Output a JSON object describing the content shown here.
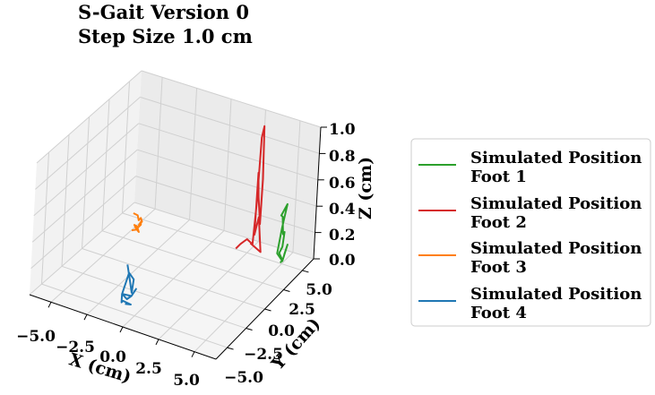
{
  "chart_data": {
    "type": "line",
    "projection": "3d",
    "title": [
      "S-Gait Version 0",
      "Step Size 1.0 cm"
    ],
    "xlabel": "X (cm)",
    "ylabel": "Y (cm)",
    "zlabel": "Z (cm)",
    "xlim": [
      -6.5,
      6.5
    ],
    "ylim": [
      -6.5,
      6.5
    ],
    "zlim": [
      0.0,
      1.0
    ],
    "xticks": [
      "−5.0",
      "−2.5",
      "0.0",
      "2.5",
      "5.0"
    ],
    "yticks": [
      "−5.0",
      "−2.5",
      "0.0",
      "2.5",
      "5.0"
    ],
    "zticks": [
      "0.0",
      "0.2",
      "0.4",
      "0.6",
      "0.8",
      "1.0"
    ],
    "grid": true,
    "legend_position": "right",
    "series": [
      {
        "name": "Simulated Position Foot 1",
        "color": "#2ca02c",
        "x": [
          5.0,
          5.2,
          5.4,
          5.3,
          5.6,
          5.8,
          5.5,
          5.2,
          5.4,
          5.6,
          5.1,
          5.0,
          5.3,
          5.5,
          5.2
        ],
        "y": [
          4.8,
          4.6,
          4.3,
          4.0,
          3.8,
          3.6,
          4.0,
          4.4,
          3.8,
          4.2,
          4.6,
          4.3,
          4.5,
          4.7,
          4.9
        ],
        "z": [
          0.02,
          0.05,
          0.08,
          0.15,
          0.22,
          0.35,
          0.3,
          0.4,
          0.45,
          0.52,
          0.3,
          0.12,
          0.06,
          0.18,
          0.08
        ]
      },
      {
        "name": "Simulated Position Foot 2",
        "color": "#d62728",
        "x": [
          1.8,
          2.0,
          2.3,
          2.6,
          2.7,
          2.8,
          3.0,
          3.1,
          3.0,
          2.8,
          2.7,
          2.6,
          2.9,
          3.2,
          2.5
        ],
        "y": [
          4.8,
          5.0,
          5.3,
          5.5,
          5.6,
          5.6,
          5.5,
          5.5,
          5.6,
          5.6,
          5.6,
          5.7,
          5.6,
          5.5,
          5.4
        ],
        "z": [
          0.02,
          0.05,
          0.08,
          0.04,
          0.35,
          0.85,
          0.95,
          0.55,
          0.2,
          0.4,
          0.58,
          0.1,
          0.25,
          0.0,
          0.05
        ]
      },
      {
        "name": "Simulated Position Foot 3",
        "color": "#ff7f0e",
        "x": [
          -5.6,
          -5.4,
          -5.2,
          -5.0,
          -4.8,
          -4.9,
          -4.7,
          -4.6,
          -4.8,
          -5.0,
          -4.7,
          -4.5,
          -4.6,
          -4.9
        ],
        "y": [
          4.8,
          5.0,
          4.8,
          4.7,
          4.5,
          4.3,
          4.2,
          4.0,
          3.8,
          3.9,
          3.7,
          3.6,
          3.5,
          3.4
        ],
        "z": [
          0.04,
          0.02,
          0.0,
          0.03,
          0.02,
          0.0,
          0.04,
          0.03,
          0.0,
          0.02,
          0.03,
          0.0,
          0.02,
          0.01
        ]
      },
      {
        "name": "Simulated Position Foot 4",
        "color": "#1f77b4",
        "x": [
          -1.8,
          -1.5,
          -1.2,
          -1.0,
          -1.4,
          -1.7,
          -1.3,
          -0.9,
          -0.7,
          -1.1,
          -1.5,
          -1.4,
          -1.2,
          -0.8,
          -1.0
        ],
        "y": [
          -2.8,
          -3.0,
          -3.2,
          -3.4,
          -3.3,
          -3.5,
          -3.6,
          -3.8,
          -3.6,
          -3.4,
          -3.9,
          -4.1,
          -4.3,
          -4.0,
          -4.4
        ],
        "z": [
          0.2,
          0.12,
          0.03,
          0.15,
          0.18,
          0.02,
          0.0,
          0.05,
          0.1,
          0.02,
          0.05,
          0.0,
          0.03,
          0.0,
          0.02
        ]
      }
    ],
    "legend": [
      {
        "line1": "Simulated Position",
        "line2": "Foot 1",
        "color": "#2ca02c"
      },
      {
        "line1": "Simulated Position",
        "line2": "Foot 2",
        "color": "#d62728"
      },
      {
        "line1": "Simulated Position",
        "line2": "Foot 3",
        "color": "#ff7f0e"
      },
      {
        "line1": "Simulated Position",
        "line2": "Foot 4",
        "color": "#1f77b4"
      }
    ]
  }
}
